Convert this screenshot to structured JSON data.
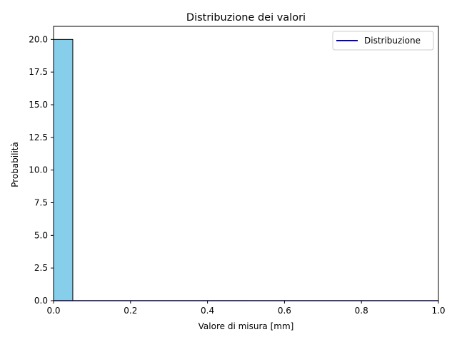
{
  "chart_data": {
    "type": "bar",
    "title": "Distribuzione dei valori",
    "xlabel": "Valore di misura [mm]",
    "ylabel": "Probabilità",
    "xlim": [
      0,
      1
    ],
    "ylim": [
      0,
      21
    ],
    "xticks": [
      0.0,
      0.2,
      0.4,
      0.6,
      0.8,
      1.0
    ],
    "xtick_labels": [
      "0.0",
      "0.2",
      "0.4",
      "0.6",
      "0.8",
      "1.0"
    ],
    "yticks": [
      0,
      2.5,
      5,
      7.5,
      10,
      12.5,
      15,
      17.5,
      20
    ],
    "ytick_labels": [
      "0.0",
      "2.5",
      "5.0",
      "7.5",
      "10.0",
      "12.5",
      "15.0",
      "17.5",
      "20.0"
    ],
    "histogram": {
      "bin_edges": [
        0.0,
        0.05,
        0.1,
        0.15,
        0.2,
        0.25,
        0.3,
        0.35,
        0.4,
        0.45,
        0.5
      ],
      "values": [
        20,
        0,
        0,
        0,
        0,
        0,
        0,
        0,
        0,
        0
      ],
      "fill_color": "#87ceeb",
      "edge_color": "#000000"
    },
    "series": [
      {
        "name": "Distribuzione",
        "kind": "line",
        "color": "#0000cc",
        "x": [
          0.0,
          1.0
        ],
        "y": [
          0,
          0
        ]
      }
    ],
    "legend": {
      "position": "top-right"
    },
    "grid": false
  }
}
